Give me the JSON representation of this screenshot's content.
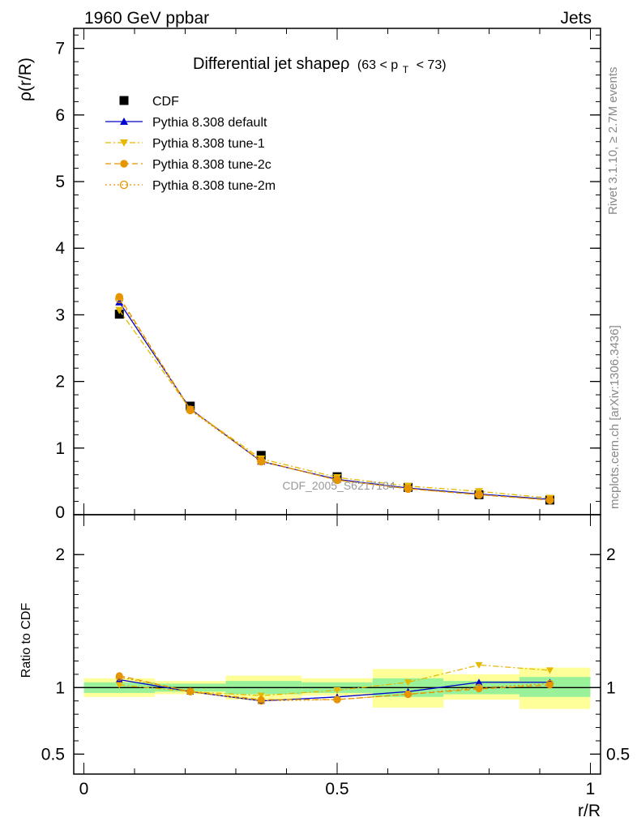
{
  "header": {
    "left": "1960 GeV ppbar",
    "right": "Jets"
  },
  "side_labels": {
    "rivet": "Rivet 3.1.10, ≥ 2.7M events",
    "mcplots": "mcplots.cern.ch [arXiv:1306.3436]"
  },
  "watermark": "CDF_2005_S6217184",
  "chart_data": [
    {
      "type": "line",
      "panel": "main",
      "title_main": "Differential jet shapeρ",
      "title_sub": "(63 < p",
      "title_sub_T": "T",
      "title_sub_end": "< 73)",
      "xlabel": "r/R",
      "ylabel": "ρ(r/R)",
      "xlim": [
        -0.02,
        1.02
      ],
      "ylim": [
        0,
        7.3
      ],
      "yticks": [
        1,
        2,
        3,
        4,
        5,
        6,
        7
      ],
      "ytick_labels": [
        "1",
        "2",
        "3",
        "4",
        "5",
        "6",
        "7"
      ],
      "ytick_zero_label": "0",
      "x": [
        0.07,
        0.21,
        0.35,
        0.5,
        0.64,
        0.78,
        0.92
      ],
      "legend_position": "top-left",
      "series": [
        {
          "name": "CDF",
          "color": "#000000",
          "marker": "square",
          "line": "none",
          "values": [
            3.01,
            1.63,
            0.89,
            0.57,
            0.41,
            0.3,
            0.22
          ]
        },
        {
          "name": "Pythia 8.308 default",
          "color": "#0000cc",
          "marker": "triangle-up",
          "line": "solid",
          "values": [
            3.19,
            1.59,
            0.8,
            0.53,
            0.4,
            0.31,
            0.23
          ]
        },
        {
          "name": "Pythia 8.308 tune-1",
          "color": "#e6b800",
          "marker": "triangle-down",
          "line": "dashdot",
          "values": [
            3.07,
            1.58,
            0.84,
            0.56,
            0.43,
            0.35,
            0.25
          ]
        },
        {
          "name": "Pythia 8.308 tune-2c",
          "color": "#e69500",
          "marker": "circle",
          "line": "dashed",
          "values": [
            3.27,
            1.58,
            0.81,
            0.52,
            0.39,
            0.3,
            0.22
          ]
        },
        {
          "name": "Pythia 8.308 tune-2m",
          "color": "#e69500",
          "marker": "circle-open",
          "line": "dotted",
          "values": [
            3.24,
            1.57,
            0.8,
            0.52,
            0.39,
            0.3,
            0.22
          ]
        }
      ]
    },
    {
      "type": "line",
      "panel": "ratio",
      "xlabel": "r/R",
      "ylabel": "Ratio to CDF",
      "xlim": [
        -0.02,
        1.02
      ],
      "ylim": [
        0.35,
        2.3
      ],
      "yticks": [
        0.5,
        1,
        2
      ],
      "ytick_labels": [
        "0.5",
        "1",
        "2"
      ],
      "xticks": [
        0,
        0.5,
        1
      ],
      "xtick_labels": [
        "0",
        "0.5",
        "1"
      ],
      "x": [
        0.07,
        0.21,
        0.35,
        0.5,
        0.64,
        0.78,
        0.92
      ],
      "bands": {
        "bins": [
          [
            0.0,
            0.14
          ],
          [
            0.14,
            0.28
          ],
          [
            0.28,
            0.43
          ],
          [
            0.43,
            0.57
          ],
          [
            0.57,
            0.71
          ],
          [
            0.71,
            0.86
          ],
          [
            0.86,
            1.0
          ]
        ],
        "inner": [
          [
            0.96,
            1.04
          ],
          [
            0.97,
            1.03
          ],
          [
            0.95,
            1.05
          ],
          [
            0.96,
            1.04
          ],
          [
            0.93,
            1.07
          ],
          [
            0.95,
            1.05
          ],
          [
            0.93,
            1.08
          ]
        ],
        "outer": [
          [
            0.93,
            1.07
          ],
          [
            0.95,
            1.05
          ],
          [
            0.91,
            1.09
          ],
          [
            0.94,
            1.07
          ],
          [
            0.85,
            1.14
          ],
          [
            0.91,
            1.1
          ],
          [
            0.84,
            1.15
          ]
        ],
        "inner_color": "#99f299",
        "outer_color": "#ffff99"
      },
      "series": [
        {
          "name": "Pythia 8.308 default",
          "color": "#0000cc",
          "marker": "triangle-up",
          "line": "solid",
          "values": [
            1.06,
            0.97,
            0.9,
            0.93,
            0.97,
            1.04,
            1.04
          ]
        },
        {
          "name": "Pythia 8.308 tune-1",
          "color": "#e6b800",
          "marker": "triangle-down",
          "line": "dashdot",
          "values": [
            1.02,
            0.97,
            0.94,
            0.98,
            1.04,
            1.17,
            1.13
          ]
        },
        {
          "name": "Pythia 8.308 tune-2c",
          "color": "#e69500",
          "marker": "circle",
          "line": "dashed",
          "values": [
            1.09,
            0.97,
            0.91,
            0.91,
            0.95,
            0.99,
            1.02
          ]
        },
        {
          "name": "Pythia 8.308 tune-2m",
          "color": "#e69500",
          "marker": "circle-open",
          "line": "dotted",
          "values": [
            1.08,
            0.97,
            0.9,
            0.91,
            0.95,
            1.0,
            1.03
          ]
        }
      ]
    }
  ]
}
